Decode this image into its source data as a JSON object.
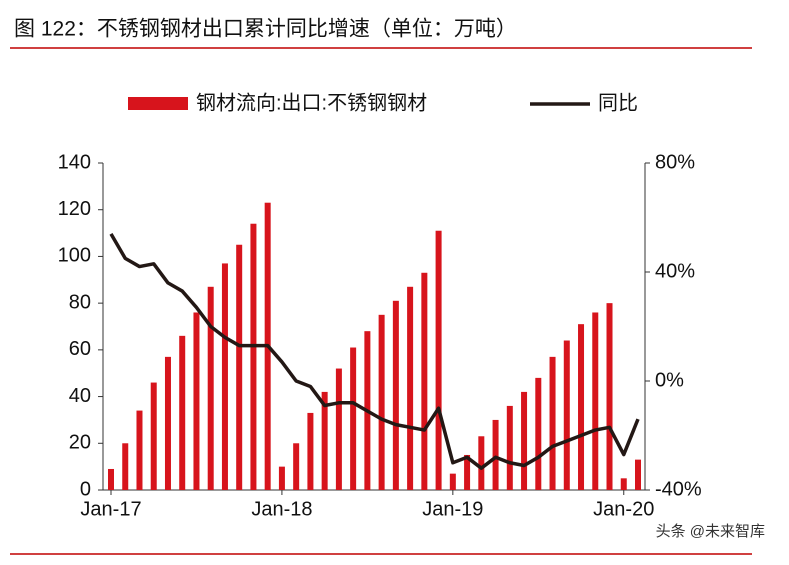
{
  "chart_data": {
    "type": "bar-line",
    "title": "图 122：不锈钢钢材出口累计同比增速（单位：万吨）",
    "watermark": "头条 @未来智库",
    "categories": [
      "Jan-17",
      null,
      null,
      null,
      null,
      null,
      null,
      null,
      null,
      null,
      null,
      null,
      "Jan-18",
      null,
      null,
      null,
      null,
      null,
      null,
      null,
      null,
      null,
      null,
      null,
      "Jan-19",
      null,
      null,
      null,
      null,
      null,
      null,
      null,
      null,
      null,
      null,
      null,
      "Jan-20",
      null
    ],
    "series": [
      {
        "name": "钢材流向:出口:不锈钢钢材",
        "color": "#d7141c",
        "kind": "bar",
        "values": [
          9,
          20,
          34,
          46,
          57,
          66,
          76,
          87,
          97,
          105,
          114,
          123,
          10,
          20,
          33,
          42,
          52,
          61,
          68,
          75,
          81,
          87,
          93,
          111,
          7,
          15,
          23,
          30,
          36,
          42,
          48,
          57,
          64,
          71,
          76,
          80,
          5,
          13
        ]
      },
      {
        "name": "同比",
        "color": "#231815",
        "kind": "line",
        "axis": "y2",
        "values": [
          54,
          45,
          42,
          43,
          36,
          33,
          27,
          20,
          16,
          13,
          13,
          13,
          7,
          0,
          -2,
          -9,
          -8,
          -8,
          -11,
          -14,
          -16,
          -17,
          -18,
          -10,
          -30,
          -28,
          -32,
          -28,
          -30,
          -31,
          -28,
          -24,
          -22,
          -20,
          -18,
          -17,
          -27,
          -14
        ]
      }
    ],
    "ylim": [
      0,
      140
    ],
    "yticks": [
      0,
      20,
      40,
      60,
      80,
      100,
      120,
      140
    ],
    "y2lim": [
      -40,
      80
    ],
    "y2ticks": [
      {
        "value": -40,
        "label": "-40%"
      },
      {
        "value": 0,
        "label": "0%"
      },
      {
        "value": 40,
        "label": "40%"
      },
      {
        "value": 80,
        "label": "80%"
      }
    ],
    "legend": "top"
  }
}
